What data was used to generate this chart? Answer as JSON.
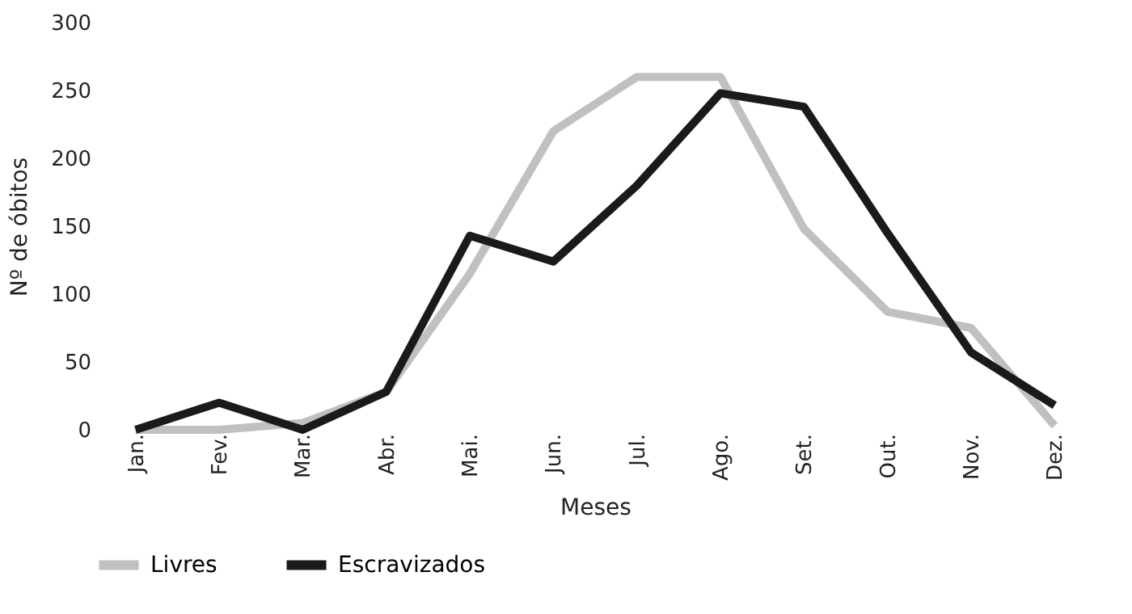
{
  "chart_data": {
    "type": "line",
    "xlabel": "Meses",
    "ylabel": "Nº de óbitos",
    "categories": [
      "Jan.",
      "Fev.",
      "Mar.",
      "Abr.",
      "Mai.",
      "Jun.",
      "Jul.",
      "Ago.",
      "Set.",
      "Out.",
      "Nov.",
      "Dez."
    ],
    "series": [
      {
        "name": "Livres",
        "color": "#c0c0c0",
        "values": [
          0,
          0,
          5,
          28,
          115,
          220,
          260,
          260,
          148,
          87,
          75,
          3
        ]
      },
      {
        "name": "Escravizados",
        "color": "#1a1a1a",
        "values": [
          0,
          20,
          0,
          28,
          143,
          124,
          180,
          248,
          238,
          145,
          57,
          18
        ]
      }
    ],
    "ylim": [
      0,
      300
    ],
    "yticks": [
      0,
      50,
      100,
      150,
      200,
      250,
      300
    ],
    "grid": false,
    "legend": "bottom",
    "marker": "none",
    "line_style": "solid"
  }
}
